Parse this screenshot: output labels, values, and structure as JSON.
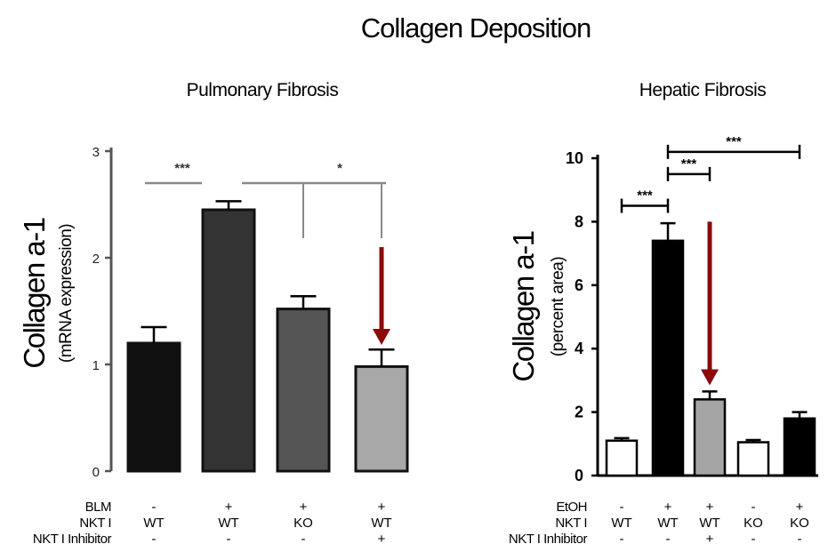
{
  "title": "Collagen Deposition",
  "colors": {
    "arrow": "#8b0a0a",
    "axis_left": "#555555",
    "axis_right": "#000000"
  },
  "chart_data": [
    {
      "type": "bar",
      "title": "Pulmonary Fibrosis",
      "ylabel": "Collagen a-1",
      "ylabel_sub": "(mRNA expression)",
      "ylim": [
        0,
        3
      ],
      "yticks": [
        "0",
        "1",
        "2",
        "3"
      ],
      "categories": [
        "BLM - / WT / -",
        "BLM + / WT / -",
        "BLM + / KO / -",
        "BLM + / WT / +"
      ],
      "values": [
        1.2,
        2.45,
        1.52,
        0.98
      ],
      "errors": [
        0.15,
        0.08,
        0.12,
        0.16
      ],
      "bar_colors": [
        "#111111",
        "#333333",
        "#555555",
        "#a8a8a8"
      ],
      "conditions": [
        {
          "label": "BLM",
          "values": [
            "-",
            "+",
            "+",
            "+"
          ]
        },
        {
          "label": "NKT I",
          "values": [
            "WT",
            "WT",
            "KO",
            "WT"
          ]
        },
        {
          "label": "NKT I Inhibitor",
          "values": [
            "-",
            "-",
            "-",
            "+"
          ]
        }
      ],
      "significance": [
        {
          "label": "***",
          "from": 0,
          "to": 1,
          "level": 2.7
        },
        {
          "label": "*",
          "from": 1,
          "to": 3,
          "level": 2.7
        }
      ],
      "arrow_bar": 3
    },
    {
      "type": "bar",
      "title": "Hepatic Fibrosis",
      "ylabel": "Collagen a-1",
      "ylabel_sub": "(percent area)",
      "ylim": [
        0,
        10
      ],
      "yticks": [
        "0",
        "2",
        "4",
        "6",
        "8",
        "10"
      ],
      "categories": [
        "EtOH - / WT / -",
        "EtOH + / WT / -",
        "EtOH + / WT / +",
        "EtOH - / KO / -",
        "EtOH + / KO / -"
      ],
      "values": [
        1.1,
        7.4,
        2.4,
        1.05,
        1.8
      ],
      "errors": [
        0.08,
        0.55,
        0.25,
        0.07,
        0.2
      ],
      "bar_colors": [
        "#ffffff",
        "#000000",
        "#a5a5a5",
        "#ffffff",
        "#000000"
      ],
      "conditions": [
        {
          "label": "EtOH",
          "values": [
            "-",
            "+",
            "+",
            "-",
            "+"
          ]
        },
        {
          "label": "NKT I",
          "values": [
            "WT",
            "WT",
            "WT",
            "KO",
            "KO"
          ]
        },
        {
          "label": "NKT I Inhibitor",
          "values": [
            "-",
            "-",
            "+",
            "-",
            "-"
          ]
        }
      ],
      "significance": [
        {
          "label": "***",
          "from": 0,
          "to": 1,
          "level": 8.5
        },
        {
          "label": "***",
          "from": 1,
          "to": 2,
          "level": 9.5
        },
        {
          "label": "***",
          "from": 1,
          "to": 4,
          "level": 10.2
        }
      ],
      "arrow_bar": 2
    }
  ]
}
